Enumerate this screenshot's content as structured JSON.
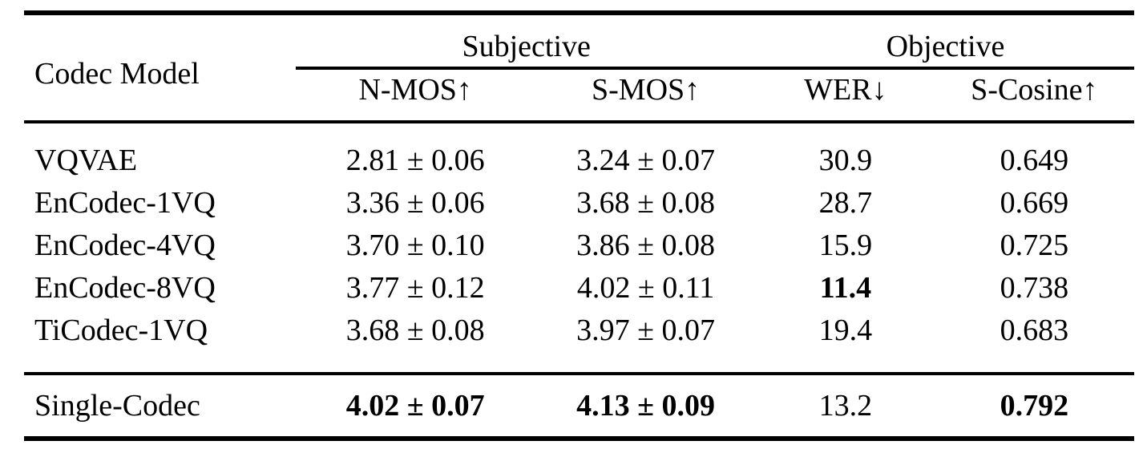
{
  "page": {
    "background_color": "#ffffff",
    "text_color": "#000000"
  },
  "table": {
    "header": {
      "model": "Codec Model",
      "subjective_group": "Subjective",
      "objective_group": "Objective",
      "nmos": "N-MOS↑",
      "smos": "S-MOS↑",
      "wer": "WER↓",
      "scosine": "S-Cosine↑"
    },
    "rows": [
      {
        "model": "VQVAE",
        "nmos": "2.81 ± 0.06",
        "smos": "3.24 ± 0.07",
        "wer": "30.9",
        "scosine": "0.649"
      },
      {
        "model": "EnCodec-1VQ",
        "nmos": "3.36 ± 0.06",
        "smos": "3.68 ± 0.08",
        "wer": "28.7",
        "scosine": "0.669"
      },
      {
        "model": "EnCodec-4VQ",
        "nmos": "3.70 ± 0.10",
        "smos": "3.86 ± 0.08",
        "wer": "15.9",
        "scosine": "0.725"
      },
      {
        "model": "EnCodec-8VQ",
        "nmos": "3.77 ± 0.12",
        "smos": "4.02 ± 0.11",
        "wer": "11.4",
        "scosine": "0.738"
      },
      {
        "model": "TiCodec-1VQ",
        "nmos": "3.68 ± 0.08",
        "smos": "3.97 ± 0.07",
        "wer": "19.4",
        "scosine": "0.683"
      }
    ],
    "footer_row": {
      "model": "Single-Codec",
      "nmos": "4.02 ± 0.07",
      "smos": "4.13 ± 0.09",
      "wer": "13.2",
      "scosine": "0.792"
    },
    "emphasis_note": {
      "bold_values": [
        "11.4",
        "4.02 ± 0.07",
        "4.13 ± 0.09",
        "0.792"
      ]
    }
  }
}
